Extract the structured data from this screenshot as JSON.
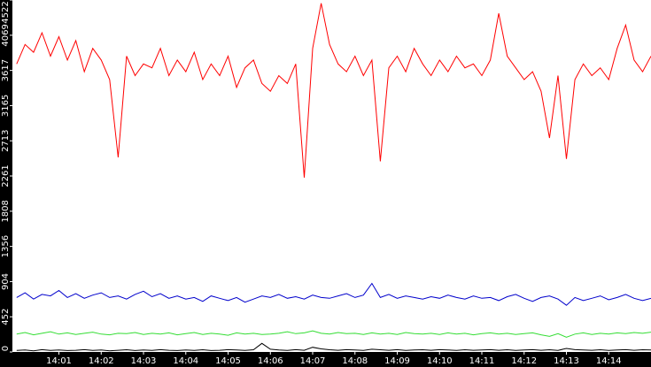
{
  "chart_data": {
    "type": "line",
    "x": [
      840.0,
      840.2,
      840.4,
      840.6,
      840.8,
      841.0,
      841.2,
      841.4,
      841.6,
      841.8,
      842.0,
      842.2,
      842.4,
      842.6,
      842.8,
      843.0,
      843.2,
      843.4,
      843.6,
      843.8,
      844.0,
      844.2,
      844.4,
      844.6,
      844.8,
      845.0,
      845.2,
      845.4,
      845.6,
      845.8,
      846.0,
      846.2,
      846.4,
      846.6,
      846.8,
      847.0,
      847.2,
      847.4,
      847.6,
      847.8,
      848.0,
      848.2,
      848.4,
      848.6,
      848.8,
      849.0,
      849.2,
      849.4,
      849.6,
      849.8,
      850.0,
      850.2,
      850.4,
      850.6,
      850.8,
      851.0,
      851.2,
      851.4,
      851.6,
      851.8,
      852.0,
      852.2,
      852.4,
      852.6,
      852.8,
      853.0,
      853.2,
      853.4,
      853.6,
      853.8,
      854.0,
      854.2,
      854.4,
      854.6,
      854.8,
      855.0
    ],
    "series": [
      {
        "color": "#ff0000",
        "values": [
          3700,
          3950,
          3850,
          4100,
          3800,
          4050,
          3750,
          4000,
          3600,
          3900,
          3750,
          3500,
          2500,
          3800,
          3550,
          3700,
          3650,
          3900,
          3550,
          3750,
          3600,
          3850,
          3500,
          3700,
          3550,
          3800,
          3400,
          3650,
          3750,
          3450,
          3350,
          3550,
          3450,
          3700,
          2240,
          3900,
          4480,
          3950,
          3700,
          3600,
          3800,
          3550,
          3750,
          2450,
          3650,
          3800,
          3600,
          3900,
          3700,
          3550,
          3750,
          3600,
          3800,
          3650,
          3700,
          3550,
          3750,
          4350,
          3800,
          3650,
          3500,
          3600,
          3350,
          2750,
          3550,
          2480,
          3500,
          3700,
          3550,
          3650,
          3500,
          3900,
          4200,
          3750,
          3600,
          3800
        ]
      },
      {
        "color": "#0000cc",
        "values": [
          700,
          760,
          680,
          740,
          720,
          790,
          700,
          750,
          690,
          730,
          760,
          700,
          720,
          680,
          740,
          780,
          710,
          750,
          690,
          720,
          680,
          700,
          650,
          720,
          690,
          660,
          700,
          640,
          680,
          720,
          700,
          740,
          690,
          710,
          680,
          730,
          700,
          690,
          720,
          750,
          700,
          730,
          880,
          700,
          740,
          690,
          720,
          700,
          680,
          710,
          690,
          730,
          700,
          680,
          720,
          690,
          700,
          660,
          710,
          740,
          690,
          650,
          700,
          720,
          680,
          600,
          700,
          660,
          690,
          720,
          670,
          700,
          740,
          690,
          660,
          690
        ]
      },
      {
        "color": "#33dd33",
        "values": [
          230,
          250,
          220,
          240,
          260,
          230,
          245,
          225,
          240,
          255,
          230,
          220,
          240,
          235,
          250,
          225,
          240,
          230,
          245,
          220,
          235,
          250,
          225,
          240,
          230,
          215,
          245,
          230,
          240,
          225,
          230,
          240,
          260,
          235,
          245,
          270,
          240,
          230,
          250,
          235,
          240,
          225,
          245,
          230,
          240,
          225,
          250,
          235,
          230,
          240,
          225,
          245,
          230,
          240,
          220,
          235,
          245,
          230,
          240,
          225,
          235,
          245,
          220,
          200,
          235,
          190,
          230,
          245,
          225,
          240,
          230,
          245,
          235,
          250,
          240,
          255
        ]
      },
      {
        "color": "#000000",
        "values": [
          20,
          25,
          15,
          30,
          20,
          25,
          18,
          22,
          30,
          20,
          25,
          15,
          22,
          28,
          18,
          25,
          20,
          30,
          22,
          18,
          25,
          20,
          28,
          18,
          22,
          30,
          25,
          20,
          28,
          110,
          35,
          25,
          20,
          30,
          22,
          60,
          40,
          28,
          22,
          30,
          25,
          20,
          35,
          28,
          22,
          30,
          20,
          25,
          28,
          22,
          30,
          25,
          20,
          28,
          22,
          25,
          30,
          22,
          28,
          20,
          25,
          30,
          22,
          28,
          20,
          45,
          30,
          25,
          22,
          28,
          20,
          25,
          30,
          22,
          28,
          25
        ]
      }
    ],
    "xlim": [
      839.9,
      855.0
    ],
    "xticks": [
      {
        "value": 841,
        "label": "14:01"
      },
      {
        "value": 842,
        "label": "14:02"
      },
      {
        "value": 843,
        "label": "14:03"
      },
      {
        "value": 844,
        "label": "14:04"
      },
      {
        "value": 845,
        "label": "14:05"
      },
      {
        "value": 846,
        "label": "14:06"
      },
      {
        "value": 847,
        "label": "14:07"
      },
      {
        "value": 848,
        "label": "14:08"
      },
      {
        "value": 849,
        "label": "14:09"
      },
      {
        "value": 850,
        "label": "14:10"
      },
      {
        "value": 851,
        "label": "14:11"
      },
      {
        "value": 852,
        "label": "14:12"
      },
      {
        "value": 853,
        "label": "14:13"
      },
      {
        "value": 854,
        "label": "14:14"
      }
    ],
    "ylim": [
      0,
      4522
    ],
    "yticks": [
      0,
      452,
      904,
      1356,
      1808,
      2261,
      2713,
      3165,
      3617,
      4069,
      4522
    ]
  }
}
